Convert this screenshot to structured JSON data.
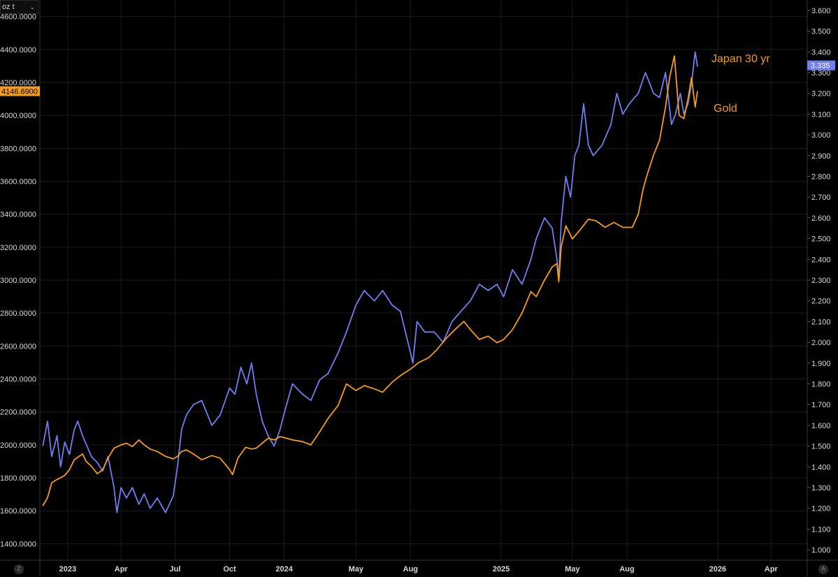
{
  "toolbar": {
    "unit_label": "oz t",
    "unit_icon": "chevron-down-icon"
  },
  "corner_buttons": {
    "left": "Z",
    "right": "A"
  },
  "colors": {
    "gold": "#f59c1a",
    "japan": "#6f7ff0",
    "background": "#000000",
    "grid": "#1b1b1b"
  },
  "chart_data": {
    "type": "line",
    "left_axis": {
      "ticks": [
        "4600.0000",
        "4400.0000",
        "4200.0000",
        "4000.0000",
        "3800.0000",
        "3600.0000",
        "3400.0000",
        "3200.0000",
        "3000.0000",
        "2800.0000",
        "2600.0000",
        "2400.0000",
        "2200.0000",
        "2000.0000",
        "1800.0000",
        "1600.0000",
        "1400.0000"
      ],
      "range": [
        1300,
        4700
      ]
    },
    "right_axis": {
      "ticks": [
        "3.600",
        "3.500",
        "3.400",
        "3.300",
        "3.200",
        "3.100",
        "3.000",
        "2.900",
        "2.800",
        "2.700",
        "2.600",
        "2.500",
        "2.400",
        "2.300",
        "2.200",
        "2.100",
        "2.000",
        "1.900",
        "1.800",
        "1.700",
        "1.600",
        "1.500",
        "1.400",
        "1.300",
        "1.200",
        "1.100",
        "1.000"
      ],
      "range": [
        0.95,
        3.65
      ]
    },
    "x_axis": {
      "ticks": [
        "2023",
        "Apr",
        "Jul",
        "Oct",
        "2024",
        "May",
        "Aug",
        "2025",
        "May",
        "Aug",
        "2026",
        "Apr"
      ],
      "tick_dates": [
        "2023-01-01",
        "2023-04-01",
        "2023-07-01",
        "2023-10-01",
        "2024-01-01",
        "2024-05-01",
        "2024-08-01",
        "2025-01-01",
        "2025-05-01",
        "2025-08-01",
        "2026-01-01",
        "2026-04-01"
      ],
      "range": [
        "2022-11-15",
        "2026-06-01"
      ]
    },
    "last_value_labels": {
      "gold": "4146.6900",
      "japan": "3.335"
    },
    "series": [
      {
        "name": "Japan 30 yr",
        "axis": "right",
        "x": [
          "2022-11-20",
          "2022-11-28",
          "2022-12-05",
          "2022-12-14",
          "2022-12-20",
          "2022-12-27",
          "2023-01-04",
          "2023-01-12",
          "2023-01-18",
          "2023-01-26",
          "2023-02-01",
          "2023-02-10",
          "2023-02-20",
          "2023-03-01",
          "2023-03-10",
          "2023-03-20",
          "2023-03-25",
          "2023-04-01",
          "2023-04-10",
          "2023-04-20",
          "2023-05-01",
          "2023-05-10",
          "2023-05-20",
          "2023-06-01",
          "2023-06-15",
          "2023-06-28",
          "2023-07-05",
          "2023-07-12",
          "2023-07-20",
          "2023-08-01",
          "2023-08-15",
          "2023-09-01",
          "2023-09-15",
          "2023-10-01",
          "2023-10-10",
          "2023-10-20",
          "2023-10-30",
          "2023-11-07",
          "2023-11-15",
          "2023-11-25",
          "2023-12-05",
          "2023-12-15",
          "2023-12-25",
          "2024-01-03",
          "2024-01-15",
          "2024-02-01",
          "2024-02-15",
          "2024-03-01",
          "2024-03-15",
          "2024-04-01",
          "2024-04-15",
          "2024-05-01",
          "2024-05-15",
          "2024-06-01",
          "2024-06-15",
          "2024-07-01",
          "2024-07-15",
          "2024-08-01",
          "2024-08-05",
          "2024-08-12",
          "2024-08-25",
          "2024-09-10",
          "2024-09-25",
          "2024-10-10",
          "2024-10-25",
          "2024-11-10",
          "2024-11-25",
          "2024-12-10",
          "2024-12-25",
          "2025-01-05",
          "2025-01-20",
          "2025-02-05",
          "2025-02-20",
          "2025-03-01",
          "2025-03-15",
          "2025-03-28",
          "2025-04-05",
          "2025-04-08",
          "2025-04-12",
          "2025-04-20",
          "2025-04-28",
          "2025-05-05",
          "2025-05-12",
          "2025-05-20",
          "2025-05-28",
          "2025-06-05",
          "2025-06-20",
          "2025-07-05",
          "2025-07-15",
          "2025-07-25",
          "2025-08-05",
          "2025-08-20",
          "2025-09-01",
          "2025-09-15",
          "2025-09-25",
          "2025-10-05",
          "2025-10-15",
          "2025-10-22",
          "2025-10-30",
          "2025-11-05",
          "2025-11-12",
          "2025-11-18",
          "2025-11-24",
          "2025-11-28"
        ],
        "y": [
          1.5,
          1.62,
          1.45,
          1.55,
          1.4,
          1.52,
          1.46,
          1.58,
          1.62,
          1.55,
          1.51,
          1.45,
          1.42,
          1.38,
          1.45,
          1.3,
          1.18,
          1.3,
          1.25,
          1.3,
          1.22,
          1.27,
          1.2,
          1.25,
          1.18,
          1.26,
          1.4,
          1.58,
          1.65,
          1.7,
          1.72,
          1.6,
          1.65,
          1.78,
          1.75,
          1.88,
          1.8,
          1.9,
          1.75,
          1.62,
          1.55,
          1.5,
          1.58,
          1.68,
          1.8,
          1.75,
          1.72,
          1.82,
          1.85,
          1.95,
          2.05,
          2.18,
          2.25,
          2.2,
          2.25,
          2.18,
          2.15,
          1.95,
          1.9,
          2.1,
          2.05,
          2.05,
          2.0,
          2.1,
          2.15,
          2.2,
          2.28,
          2.25,
          2.28,
          2.22,
          2.35,
          2.28,
          2.4,
          2.5,
          2.6,
          2.55,
          2.4,
          2.3,
          2.58,
          2.8,
          2.7,
          2.9,
          2.95,
          3.15,
          2.95,
          2.9,
          2.95,
          3.05,
          3.2,
          3.1,
          3.15,
          3.2,
          3.3,
          3.2,
          3.18,
          3.3,
          3.05,
          3.1,
          3.2,
          3.1,
          3.15,
          3.25,
          3.4,
          3.33
        ]
      },
      {
        "name": "Gold",
        "axis": "left",
        "x": [
          "2022-11-20",
          "2022-11-28",
          "2022-12-05",
          "2022-12-14",
          "2022-12-20",
          "2022-12-27",
          "2023-01-04",
          "2023-01-12",
          "2023-01-20",
          "2023-01-26",
          "2023-02-01",
          "2023-02-10",
          "2023-02-20",
          "2023-03-01",
          "2023-03-10",
          "2023-03-20",
          "2023-04-01",
          "2023-04-10",
          "2023-04-20",
          "2023-05-01",
          "2023-05-10",
          "2023-05-20",
          "2023-06-01",
          "2023-06-15",
          "2023-06-28",
          "2023-07-05",
          "2023-07-12",
          "2023-07-20",
          "2023-08-01",
          "2023-08-15",
          "2023-09-01",
          "2023-09-15",
          "2023-10-01",
          "2023-10-06",
          "2023-10-15",
          "2023-10-28",
          "2023-11-07",
          "2023-11-15",
          "2023-11-25",
          "2023-12-05",
          "2023-12-15",
          "2023-12-25",
          "2024-01-05",
          "2024-01-15",
          "2024-02-01",
          "2024-02-15",
          "2024-03-01",
          "2024-03-15",
          "2024-04-01",
          "2024-04-15",
          "2024-05-01",
          "2024-05-15",
          "2024-06-01",
          "2024-06-15",
          "2024-07-01",
          "2024-07-15",
          "2024-08-01",
          "2024-08-15",
          "2024-09-01",
          "2024-09-15",
          "2024-10-01",
          "2024-10-15",
          "2024-10-30",
          "2024-11-10",
          "2024-11-25",
          "2024-12-10",
          "2024-12-25",
          "2025-01-05",
          "2025-01-20",
          "2025-02-05",
          "2025-02-20",
          "2025-03-01",
          "2025-03-15",
          "2025-03-28",
          "2025-04-05",
          "2025-04-08",
          "2025-04-12",
          "2025-04-20",
          "2025-05-01",
          "2025-05-15",
          "2025-05-28",
          "2025-06-10",
          "2025-06-25",
          "2025-07-10",
          "2025-07-25",
          "2025-08-10",
          "2025-08-20",
          "2025-08-28",
          "2025-09-05",
          "2025-09-15",
          "2025-09-25",
          "2025-10-05",
          "2025-10-12",
          "2025-10-20",
          "2025-10-28",
          "2025-11-05",
          "2025-11-12",
          "2025-11-18",
          "2025-11-24",
          "2025-11-28"
        ],
        "y": [
          1630,
          1680,
          1770,
          1790,
          1800,
          1815,
          1850,
          1910,
          1930,
          1945,
          1900,
          1870,
          1825,
          1850,
          1920,
          1980,
          2000,
          2010,
          1990,
          2030,
          2000,
          1975,
          1960,
          1930,
          1915,
          1930,
          1960,
          1970,
          1945,
          1910,
          1935,
          1920,
          1850,
          1820,
          1920,
          1985,
          1975,
          1980,
          2010,
          2040,
          2030,
          2050,
          2040,
          2030,
          2020,
          2000,
          2080,
          2160,
          2240,
          2370,
          2330,
          2360,
          2340,
          2320,
          2380,
          2420,
          2460,
          2500,
          2530,
          2580,
          2650,
          2700,
          2750,
          2700,
          2640,
          2660,
          2620,
          2640,
          2700,
          2800,
          2930,
          2900,
          3000,
          3080,
          3100,
          2990,
          3200,
          3330,
          3250,
          3310,
          3370,
          3360,
          3320,
          3350,
          3320,
          3320,
          3400,
          3550,
          3650,
          3760,
          3850,
          4050,
          4230,
          4360,
          4000,
          3980,
          4100,
          4230,
          4050,
          4146.69
        ]
      }
    ]
  }
}
